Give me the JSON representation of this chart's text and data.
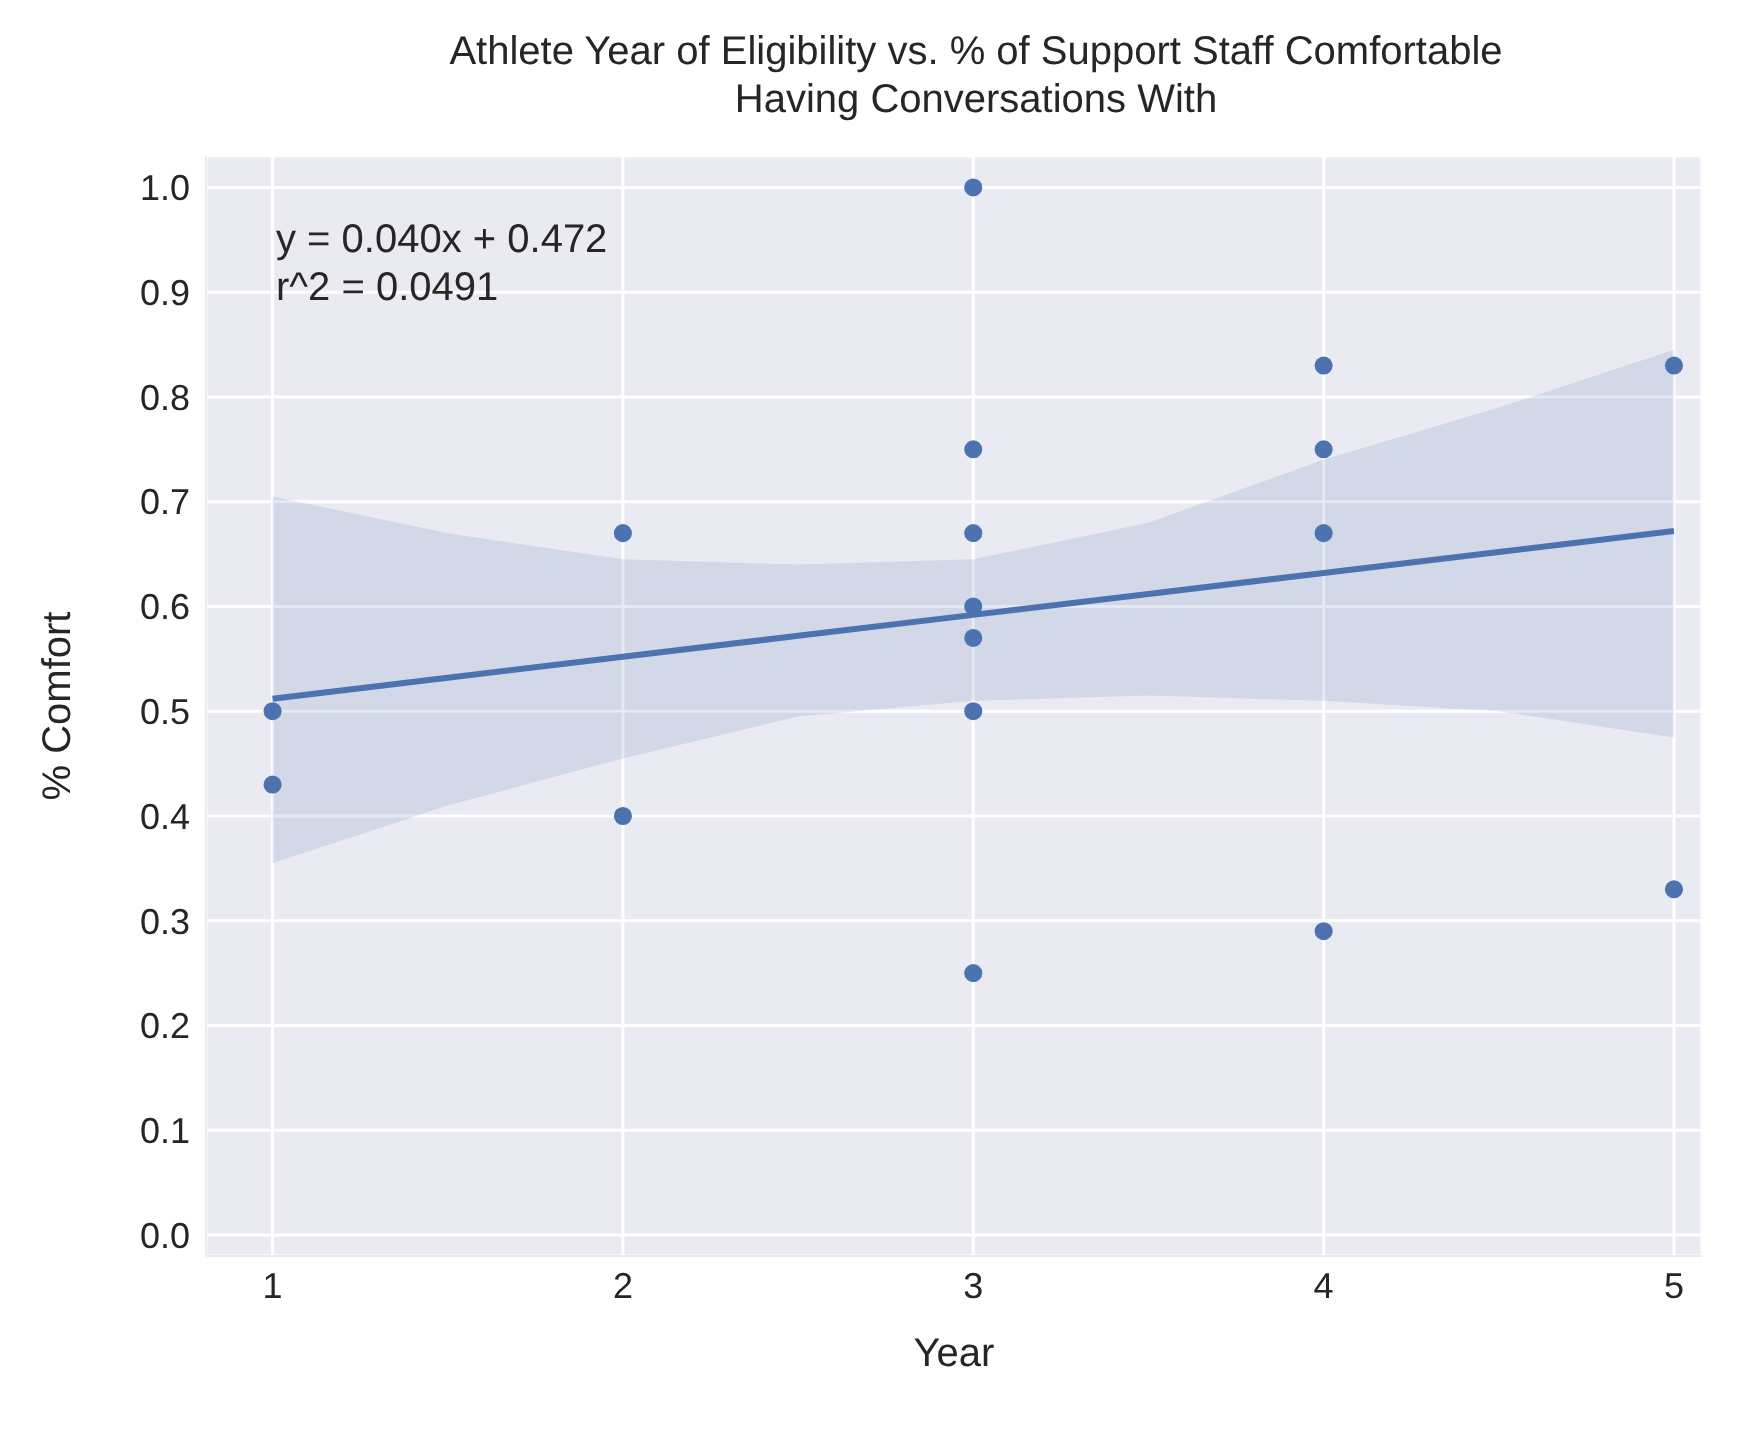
{
  "chart_data": {
    "type": "scatter",
    "title": "Athlete Year of Eligibility vs. % of Support Staff Comfortable Having Conversations With",
    "xlabel": "Year",
    "ylabel": "% Comfort",
    "annotations": [
      "y = 0.040x + 0.472",
      "r^2 = 0.0491"
    ],
    "xlim": [
      0.81,
      5.08
    ],
    "ylim": [
      -0.02,
      1.03
    ],
    "xticks": [
      1,
      2,
      3,
      4,
      5
    ],
    "yticks": [
      {
        "value": 0,
        "label": "0.0"
      },
      0.1,
      0.2,
      0.3,
      0.4,
      0.5,
      0.6,
      0.7,
      0.8,
      0.9,
      {
        "value": 1,
        "label": "1.0"
      }
    ],
    "grid": true,
    "series": [
      {
        "marker": "circle",
        "color": "#4c72b0",
        "x": [
          1,
          1,
          2,
          2,
          3,
          3,
          3,
          3,
          3,
          3,
          3,
          4,
          4,
          4,
          4,
          5,
          5
        ],
        "values": [
          0.5,
          0.43,
          0.67,
          0.4,
          1.0,
          0.75,
          0.67,
          0.6,
          0.57,
          0.5,
          0.25,
          0.83,
          0.75,
          0.67,
          0.29,
          0.83,
          0.33
        ]
      },
      {
        "type": "line",
        "marker": "none",
        "color": "#4c72b0",
        "x": [
          1,
          1.5,
          2,
          2.5,
          3,
          3.5,
          4,
          4.5,
          5
        ],
        "values": [
          0.512,
          0.532,
          0.552,
          0.572,
          0.592,
          0.612,
          0.632,
          0.652,
          0.672
        ],
        "lower": [
          0.355,
          0.41,
          0.455,
          0.495,
          0.51,
          0.515,
          0.51,
          0.5,
          0.475
        ],
        "upper": [
          0.705,
          0.67,
          0.645,
          0.64,
          0.645,
          0.68,
          0.74,
          0.79,
          0.845
        ]
      }
    ]
  }
}
